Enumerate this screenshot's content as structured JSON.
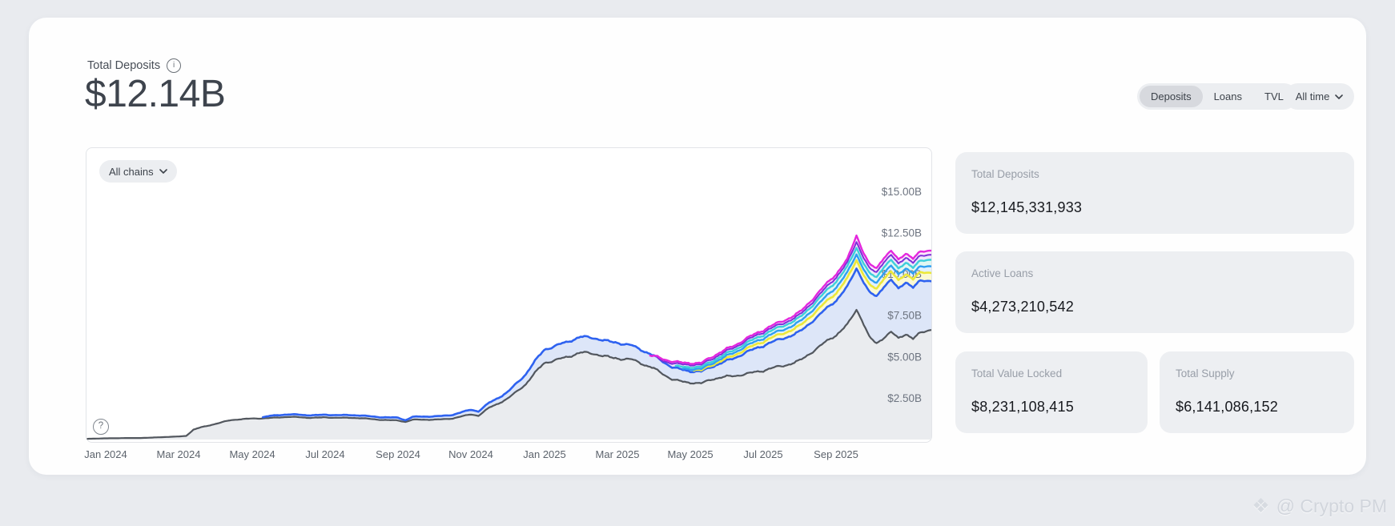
{
  "header": {
    "title": "Total Deposits",
    "value": "$12.14B"
  },
  "controls": {
    "tabs": [
      {
        "label": "Deposits",
        "selected": true
      },
      {
        "label": "Loans",
        "selected": false
      },
      {
        "label": "TVL",
        "selected": false
      }
    ],
    "time_range": {
      "label": "All time"
    }
  },
  "chart_panel": {
    "chain_filter": {
      "label": "All chains"
    },
    "help_icon": "?"
  },
  "stats": {
    "cards": [
      {
        "label": "Total Deposits",
        "value": "$12,145,331,933"
      },
      {
        "label": "Active Loans",
        "value": "$4,273,210,542"
      },
      {
        "label": "Total Value Locked",
        "value": "$8,231,108,415"
      },
      {
        "label": "Total Supply",
        "value": "$6,141,086,152"
      }
    ]
  },
  "watermark": {
    "text": "@ Crypto PM"
  },
  "colors": {
    "page_background": "#e9ebef",
    "card_background": "#edeff2",
    "pill_background": "#eceef1",
    "selected_pill": "#d7d9de",
    "value_text": "#17191e",
    "muted_text": "#989ea8"
  },
  "chart_data": {
    "type": "area",
    "title": "Total Deposits over time (all chains)",
    "legend": "none",
    "grid": false,
    "x_unit": "months since Jan 2024",
    "x_range": [
      -0.53,
      22.6
    ],
    "ylim": [
      0,
      17.6
    ],
    "y_axis": {
      "ticks": [
        {
          "value": 15,
          "label": "$15.00B"
        },
        {
          "value": 12.5,
          "label": "$12.50B"
        },
        {
          "value": 10,
          "label": "$10.00B"
        },
        {
          "value": 7.5,
          "label": "$7.50B"
        },
        {
          "value": 5,
          "label": "$5.00B"
        },
        {
          "value": 2.5,
          "label": "$2.50B"
        }
      ]
    },
    "x_axis": {
      "ticks": [
        {
          "t": 0,
          "label": "Jan 2024"
        },
        {
          "t": 2,
          "label": "Mar 2024"
        },
        {
          "t": 4,
          "label": "May 2024"
        },
        {
          "t": 6,
          "label": "Jul 2024"
        },
        {
          "t": 8,
          "label": "Sep 2024"
        },
        {
          "t": 10,
          "label": "Nov 2024"
        },
        {
          "t": 12,
          "label": "Jan 2025"
        },
        {
          "t": 14,
          "label": "Mar 2025"
        },
        {
          "t": 16,
          "label": "May 2025"
        },
        {
          "t": 18,
          "label": "Jul 2025"
        },
        {
          "t": 20,
          "label": "Sep 2025"
        }
      ]
    },
    "series": [
      {
        "name": "magenta",
        "color": "#e427dd",
        "fill": "#fbe9fa",
        "width": 2.4,
        "points": [
          [
            14.9,
            5.0
          ],
          [
            15.1,
            4.95
          ],
          [
            15.5,
            4.8
          ],
          [
            16,
            4.65
          ],
          [
            16.3,
            4.55
          ],
          [
            16.6,
            4.95
          ],
          [
            17,
            5.52
          ],
          [
            17.5,
            6.12
          ],
          [
            18,
            6.55
          ],
          [
            18.5,
            7.15
          ],
          [
            19,
            7.78
          ],
          [
            19.5,
            8.8
          ],
          [
            20,
            10.0
          ],
          [
            20.3,
            10.95
          ],
          [
            20.55,
            12.45
          ],
          [
            20.7,
            11.6
          ],
          [
            20.9,
            10.6
          ],
          [
            21.1,
            10.3
          ],
          [
            21.3,
            10.95
          ],
          [
            21.5,
            11.35
          ],
          [
            21.7,
            10.85
          ],
          [
            21.9,
            11.35
          ],
          [
            22.1,
            11.05
          ],
          [
            22.3,
            11.4
          ],
          [
            22.6,
            11.45
          ]
        ]
      },
      {
        "name": "purple",
        "color": "#7d30d8",
        "fill": "#efe8fb",
        "width": 2.0,
        "points": [
          [
            15.1,
            4.85
          ],
          [
            15.5,
            4.68
          ],
          [
            16,
            4.55
          ],
          [
            16.3,
            4.45
          ],
          [
            16.6,
            4.82
          ],
          [
            17,
            5.4
          ],
          [
            17.5,
            6.0
          ],
          [
            18,
            6.42
          ],
          [
            18.5,
            7.0
          ],
          [
            19,
            7.62
          ],
          [
            19.5,
            8.6
          ],
          [
            20,
            9.8
          ],
          [
            20.3,
            10.75
          ],
          [
            20.55,
            12.05
          ],
          [
            20.7,
            11.3
          ],
          [
            20.9,
            10.35
          ],
          [
            21.1,
            10.05
          ],
          [
            21.3,
            10.7
          ],
          [
            21.5,
            11.1
          ],
          [
            21.7,
            10.6
          ],
          [
            21.9,
            11.1
          ],
          [
            22.1,
            10.8
          ],
          [
            22.3,
            11.15
          ],
          [
            22.6,
            11.2
          ]
        ]
      },
      {
        "name": "cyan",
        "color": "#3ecfda",
        "fill": "#e1f7f2",
        "width": 2.4,
        "points": [
          [
            15.6,
            4.5
          ],
          [
            16,
            4.4
          ],
          [
            16.3,
            4.32
          ],
          [
            16.6,
            4.68
          ],
          [
            17,
            5.25
          ],
          [
            17.5,
            5.85
          ],
          [
            18,
            6.25
          ],
          [
            18.5,
            6.85
          ],
          [
            19,
            7.45
          ],
          [
            19.5,
            8.4
          ],
          [
            20,
            9.55
          ],
          [
            20.3,
            10.5
          ],
          [
            20.55,
            11.7
          ],
          [
            20.7,
            10.95
          ],
          [
            20.9,
            10.05
          ],
          [
            21.1,
            9.75
          ],
          [
            21.3,
            10.4
          ],
          [
            21.5,
            10.8
          ],
          [
            21.7,
            10.3
          ],
          [
            21.9,
            10.8
          ],
          [
            22.1,
            10.5
          ],
          [
            22.3,
            10.85
          ],
          [
            22.6,
            10.9
          ]
        ]
      },
      {
        "name": "sky-blue",
        "color": "#2f9ff2",
        "fill": "#e3f1fd",
        "width": 2.4,
        "points": [
          [
            15.8,
            4.35
          ],
          [
            16,
            4.28
          ],
          [
            16.3,
            4.2
          ],
          [
            16.6,
            4.55
          ],
          [
            17,
            5.1
          ],
          [
            17.5,
            5.68
          ],
          [
            18,
            6.05
          ],
          [
            18.5,
            6.62
          ],
          [
            19,
            7.2
          ],
          [
            19.5,
            8.1
          ],
          [
            20,
            9.2
          ],
          [
            20.3,
            10.15
          ],
          [
            20.55,
            11.3
          ],
          [
            20.7,
            10.6
          ],
          [
            20.9,
            9.7
          ],
          [
            21.1,
            9.4
          ],
          [
            21.3,
            10.05
          ],
          [
            21.5,
            10.45
          ],
          [
            21.7,
            9.95
          ],
          [
            21.9,
            10.45
          ],
          [
            22.1,
            10.15
          ],
          [
            22.3,
            10.5
          ],
          [
            22.6,
            10.5
          ]
        ]
      },
      {
        "name": "yellow",
        "color": "#ece83a",
        "fill": "#fbf9d4",
        "width": 2.6,
        "points": [
          [
            16.1,
            4.2
          ],
          [
            16.3,
            4.12
          ],
          [
            16.6,
            4.45
          ],
          [
            17,
            4.95
          ],
          [
            17.5,
            5.5
          ],
          [
            18,
            5.85
          ],
          [
            18.5,
            6.4
          ],
          [
            19,
            6.95
          ],
          [
            19.5,
            7.8
          ],
          [
            20,
            8.85
          ],
          [
            20.3,
            9.8
          ],
          [
            20.55,
            10.95
          ],
          [
            20.7,
            10.25
          ],
          [
            20.9,
            9.35
          ],
          [
            21.1,
            9.05
          ],
          [
            21.3,
            9.7
          ],
          [
            21.5,
            10.1
          ],
          [
            21.7,
            9.6
          ],
          [
            21.9,
            10.1
          ],
          [
            22.1,
            9.8
          ],
          [
            22.3,
            10.15
          ],
          [
            22.6,
            10.1
          ]
        ]
      },
      {
        "name": "blue",
        "color": "#2e62f0",
        "fill": "#dde6f8",
        "width": 2.6,
        "points": [
          [
            4.3,
            1.38
          ],
          [
            4.5,
            1.45
          ],
          [
            5,
            1.5
          ],
          [
            5.5,
            1.47
          ],
          [
            6,
            1.52
          ],
          [
            6.5,
            1.46
          ],
          [
            7,
            1.44
          ],
          [
            7.5,
            1.38
          ],
          [
            8,
            1.32
          ],
          [
            8.2,
            1.15
          ],
          [
            8.4,
            1.35
          ],
          [
            9,
            1.42
          ],
          [
            9.5,
            1.5
          ],
          [
            10,
            1.78
          ],
          [
            10.2,
            1.68
          ],
          [
            10.5,
            2.25
          ],
          [
            11,
            2.9
          ],
          [
            11.5,
            3.9
          ],
          [
            12,
            5.45
          ],
          [
            12.5,
            5.9
          ],
          [
            13,
            6.15
          ],
          [
            13.3,
            6.1
          ],
          [
            13.6,
            6.0
          ],
          [
            14,
            5.95
          ],
          [
            14.4,
            5.7
          ],
          [
            14.8,
            5.2
          ],
          [
            15,
            5.0
          ],
          [
            15.5,
            4.45
          ],
          [
            16,
            4.15
          ],
          [
            16.3,
            4.05
          ],
          [
            16.6,
            4.35
          ],
          [
            17,
            4.8
          ],
          [
            17.5,
            5.3
          ],
          [
            18,
            5.6
          ],
          [
            18.5,
            6.1
          ],
          [
            19,
            6.6
          ],
          [
            19.5,
            7.4
          ],
          [
            20,
            8.4
          ],
          [
            20.3,
            9.3
          ],
          [
            20.55,
            10.45
          ],
          [
            20.7,
            9.8
          ],
          [
            20.9,
            8.9
          ],
          [
            21.1,
            8.6
          ],
          [
            21.3,
            9.2
          ],
          [
            21.5,
            9.6
          ],
          [
            21.7,
            9.1
          ],
          [
            21.9,
            9.6
          ],
          [
            22.1,
            9.3
          ],
          [
            22.3,
            9.65
          ],
          [
            22.6,
            9.6
          ]
        ]
      },
      {
        "name": "gray",
        "color": "#52575e",
        "fill": "#eaecef",
        "width": 2.2,
        "points": [
          [
            -0.5,
            0.05
          ],
          [
            0,
            0.07
          ],
          [
            1,
            0.1
          ],
          [
            2,
            0.18
          ],
          [
            2.2,
            0.22
          ],
          [
            2.4,
            0.6
          ],
          [
            2.6,
            0.75
          ],
          [
            3,
            0.95
          ],
          [
            3.4,
            1.15
          ],
          [
            4,
            1.28
          ],
          [
            4.5,
            1.32
          ],
          [
            5,
            1.35
          ],
          [
            5.5,
            1.32
          ],
          [
            6,
            1.36
          ],
          [
            6.5,
            1.3
          ],
          [
            7,
            1.28
          ],
          [
            7.5,
            1.22
          ],
          [
            8,
            1.15
          ],
          [
            8.2,
            1.05
          ],
          [
            8.4,
            1.18
          ],
          [
            9,
            1.22
          ],
          [
            9.5,
            1.28
          ],
          [
            10,
            1.5
          ],
          [
            10.2,
            1.42
          ],
          [
            10.5,
            1.95
          ],
          [
            11,
            2.5
          ],
          [
            11.5,
            3.3
          ],
          [
            12,
            4.65
          ],
          [
            12.5,
            5.0
          ],
          [
            13,
            5.2
          ],
          [
            13.3,
            5.15
          ],
          [
            13.6,
            5.05
          ],
          [
            14,
            5.0
          ],
          [
            14.4,
            4.85
          ],
          [
            14.8,
            4.4
          ],
          [
            15,
            4.25
          ],
          [
            15.5,
            3.7
          ],
          [
            16,
            3.45
          ],
          [
            16.3,
            3.35
          ],
          [
            16.6,
            3.6
          ],
          [
            17,
            3.85
          ],
          [
            17.5,
            4.0
          ],
          [
            18,
            4.1
          ],
          [
            18.5,
            4.45
          ],
          [
            19,
            4.85
          ],
          [
            19.5,
            5.5
          ],
          [
            20,
            6.3
          ],
          [
            20.3,
            7.0
          ],
          [
            20.55,
            7.95
          ],
          [
            20.7,
            7.3
          ],
          [
            20.9,
            6.2
          ],
          [
            21.1,
            5.75
          ],
          [
            21.3,
            6.1
          ],
          [
            21.5,
            6.45
          ],
          [
            21.7,
            6.1
          ],
          [
            21.9,
            6.45
          ],
          [
            22.1,
            6.2
          ],
          [
            22.3,
            6.5
          ],
          [
            22.6,
            6.65
          ]
        ]
      }
    ]
  }
}
